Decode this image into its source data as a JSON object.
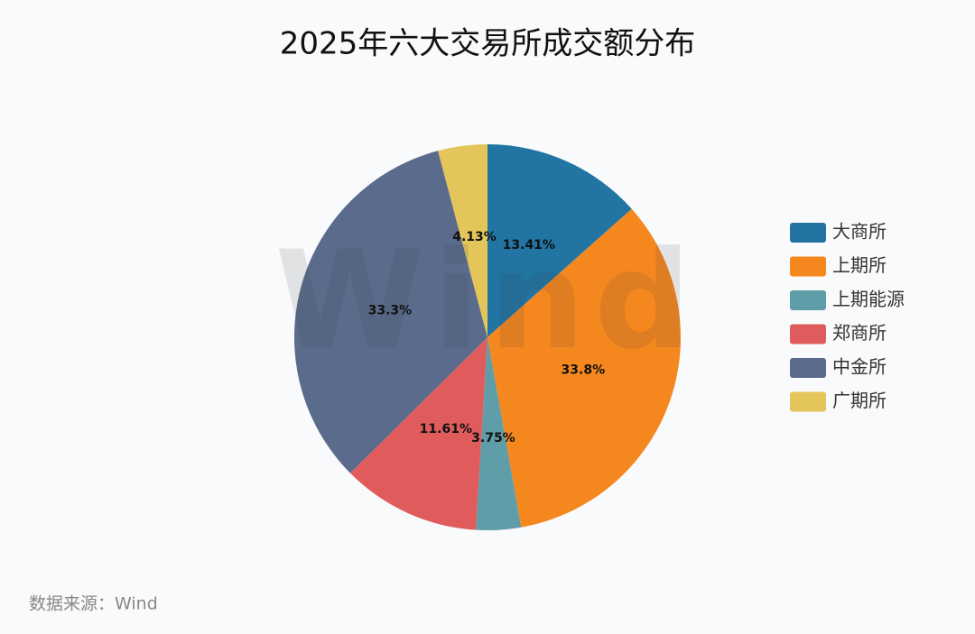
{
  "chart_data": {
    "type": "pie",
    "title": "2025年六大交易所成交额分布",
    "categories": [
      "大商所",
      "上期所",
      "上期能源",
      "郑商所",
      "中金所",
      "广期所"
    ],
    "values": [
      13.41,
      33.8,
      3.75,
      11.61,
      33.3,
      4.13
    ],
    "value_labels": [
      "13.41%",
      "33.8%",
      "3.75%",
      "11.61%",
      "33.3%",
      "4.13%"
    ],
    "colors": [
      "#2275a3",
      "#f5871f",
      "#5f9ea8",
      "#e05c5c",
      "#5b6b8c",
      "#e3c55a"
    ],
    "legend": "right",
    "watermark": "Wind",
    "source": "数据来源：Wind"
  }
}
